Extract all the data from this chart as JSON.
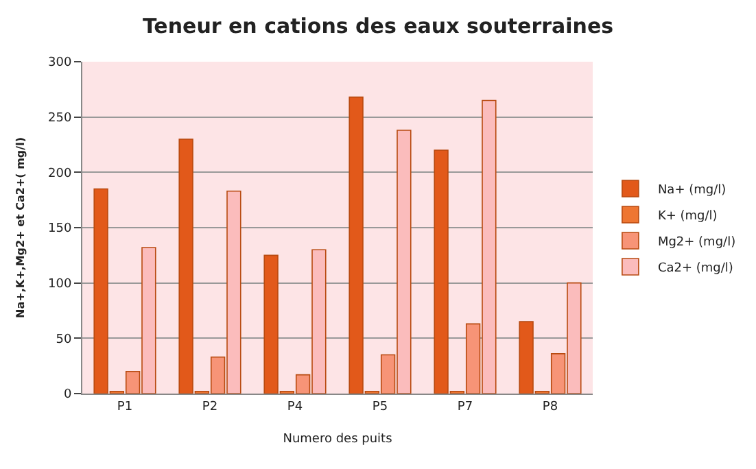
{
  "chart_data": {
    "type": "bar",
    "title": "Teneur en cations des eaux souterraines",
    "xlabel": "Numero des puits",
    "ylabel": "Na+,K+,Mg2+ et Ca2+( mg/l)",
    "categories": [
      "P1",
      "P2",
      "P4",
      "P5",
      "P7",
      "P8"
    ],
    "series": [
      {
        "name": "Na+ (mg/l)",
        "color": "#e2591a",
        "values": [
          185,
          230,
          125,
          268,
          220,
          65
        ]
      },
      {
        "name": "K+ (mg/l)",
        "color": "#ee7632",
        "values": [
          2,
          2,
          2,
          2,
          2,
          2
        ]
      },
      {
        "name": "Mg2+ (mg/l)",
        "color": "#f79477",
        "values": [
          20,
          33,
          17,
          35,
          63,
          36
        ]
      },
      {
        "name": "Ca2+ (mg/l)",
        "color": "#fbbcbc",
        "values": [
          132,
          183,
          130,
          238,
          265,
          100
        ]
      }
    ],
    "ylim": [
      0,
      300
    ],
    "yticks": [
      0,
      50,
      100,
      150,
      200,
      250,
      300
    ],
    "grid": "y",
    "legend": "right"
  }
}
